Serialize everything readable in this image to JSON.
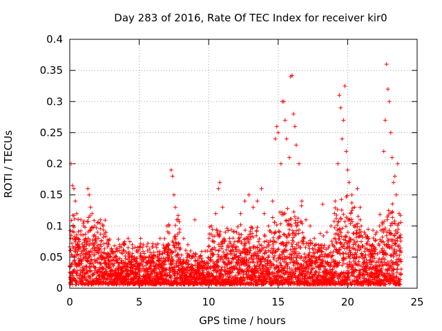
{
  "chart_data": {
    "type": "scatter",
    "title": "Day 283 of 2016, Rate Of TEC Index for receiver kir0",
    "xlabel": "GPS time / hours",
    "ylabel": "ROTI / TECUs",
    "xlim": [
      0,
      25
    ],
    "ylim": [
      0,
      0.4
    ],
    "xticks": [
      0,
      5,
      10,
      15,
      20,
      25
    ],
    "xtick_labels": [
      "0",
      "5",
      "10",
      "15",
      "20",
      "25"
    ],
    "yticks": [
      0,
      0.05,
      0.1,
      0.15,
      0.2,
      0.25,
      0.3,
      0.35,
      0.4
    ],
    "ytick_labels": [
      "0",
      "0.05",
      "0.1",
      "0.15",
      "0.2",
      "0.25",
      "0.3",
      "0.35",
      "0.4"
    ],
    "grid": true,
    "marker": "+",
    "series": [
      {
        "name": "ROTI",
        "color": "#ff0000",
        "points": [
          [
            0.1,
            0.2
          ],
          [
            0.2,
            0.165
          ],
          [
            0.3,
            0.16
          ],
          [
            0.4,
            0.14
          ],
          [
            0.5,
            0.12
          ],
          [
            0.3,
            0.09
          ],
          [
            0.6,
            0.08
          ],
          [
            0.8,
            0.11
          ],
          [
            1.0,
            0.1
          ],
          [
            1.3,
            0.16
          ],
          [
            1.4,
            0.15
          ],
          [
            1.5,
            0.13
          ],
          [
            1.6,
            0.12
          ],
          [
            1.2,
            0.07
          ],
          [
            1.8,
            0.1
          ],
          [
            2.0,
            0.09
          ],
          [
            2.2,
            0.11
          ],
          [
            2.4,
            0.1
          ],
          [
            2.6,
            0.09
          ],
          [
            2.8,
            0.07
          ],
          [
            3.0,
            0.06
          ],
          [
            3.3,
            0.05
          ],
          [
            3.6,
            0.07
          ],
          [
            3.9,
            0.06
          ],
          [
            4.2,
            0.08
          ],
          [
            4.5,
            0.07
          ],
          [
            4.8,
            0.06
          ],
          [
            5.1,
            0.08
          ],
          [
            5.3,
            0.07
          ],
          [
            5.6,
            0.06
          ],
          [
            5.9,
            0.05
          ],
          [
            6.2,
            0.07
          ],
          [
            6.5,
            0.08
          ],
          [
            6.8,
            0.06
          ],
          [
            7.1,
            0.07
          ],
          [
            7.3,
            0.19
          ],
          [
            7.4,
            0.18
          ],
          [
            7.5,
            0.15
          ],
          [
            7.6,
            0.13
          ],
          [
            7.7,
            0.11
          ],
          [
            7.9,
            0.09
          ],
          [
            8.2,
            0.08
          ],
          [
            8.5,
            0.07
          ],
          [
            8.7,
            0.06
          ],
          [
            9.0,
            0.11
          ],
          [
            9.3,
            0.05
          ],
          [
            9.6,
            0.04
          ],
          [
            9.9,
            0.06
          ],
          [
            10.2,
            0.1
          ],
          [
            10.5,
            0.12
          ],
          [
            10.7,
            0.16
          ],
          [
            10.8,
            0.17
          ],
          [
            11.0,
            0.13
          ],
          [
            11.2,
            0.09
          ],
          [
            11.5,
            0.08
          ],
          [
            11.8,
            0.07
          ],
          [
            12.0,
            0.09
          ],
          [
            12.3,
            0.12
          ],
          [
            12.6,
            0.14
          ],
          [
            12.9,
            0.15
          ],
          [
            13.2,
            0.13
          ],
          [
            13.5,
            0.14
          ],
          [
            13.8,
            0.16
          ],
          [
            14.0,
            0.12
          ],
          [
            14.3,
            0.1
          ],
          [
            14.6,
            0.14
          ],
          [
            14.8,
            0.24
          ],
          [
            14.9,
            0.26
          ],
          [
            15.0,
            0.25
          ],
          [
            15.2,
            0.2
          ],
          [
            15.3,
            0.3
          ],
          [
            15.4,
            0.3
          ],
          [
            15.5,
            0.27
          ],
          [
            15.6,
            0.24
          ],
          [
            15.8,
            0.21
          ],
          [
            15.9,
            0.34
          ],
          [
            16.0,
            0.342
          ],
          [
            16.1,
            0.28
          ],
          [
            16.2,
            0.26
          ],
          [
            16.3,
            0.23
          ],
          [
            16.5,
            0.2
          ],
          [
            16.7,
            0.14
          ],
          [
            17.0,
            0.11
          ],
          [
            17.3,
            0.1
          ],
          [
            17.6,
            0.08
          ],
          [
            17.9,
            0.07
          ],
          [
            18.2,
            0.135
          ],
          [
            18.5,
            0.09
          ],
          [
            18.8,
            0.1
          ],
          [
            19.1,
            0.14
          ],
          [
            19.3,
            0.2
          ],
          [
            19.4,
            0.31
          ],
          [
            19.5,
            0.29
          ],
          [
            19.6,
            0.24
          ],
          [
            19.7,
            0.27
          ],
          [
            19.8,
            0.325
          ],
          [
            19.9,
            0.22
          ],
          [
            20.0,
            0.19
          ],
          [
            20.1,
            0.17
          ],
          [
            20.3,
            0.15
          ],
          [
            20.5,
            0.13
          ],
          [
            20.7,
            0.16
          ],
          [
            20.9,
            0.11
          ],
          [
            21.2,
            0.09
          ],
          [
            21.5,
            0.08
          ],
          [
            21.8,
            0.07
          ],
          [
            22.1,
            0.09
          ],
          [
            22.3,
            0.1
          ],
          [
            22.6,
            0.22
          ],
          [
            22.7,
            0.27
          ],
          [
            22.8,
            0.36
          ],
          [
            22.9,
            0.32
          ],
          [
            23.0,
            0.3
          ],
          [
            23.1,
            0.25
          ],
          [
            23.2,
            0.21
          ],
          [
            23.3,
            0.17
          ],
          [
            23.4,
            0.18
          ],
          [
            23.5,
            0.15
          ],
          [
            23.6,
            0.2
          ],
          [
            23.7,
            0.12
          ],
          [
            23.8,
            0.06
          ]
        ]
      }
    ]
  }
}
